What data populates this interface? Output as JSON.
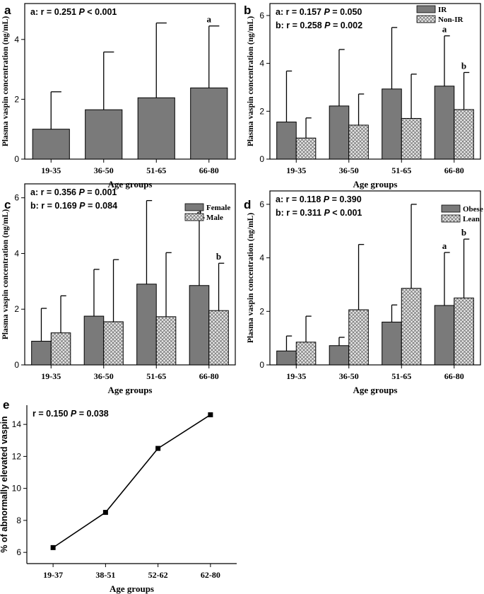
{
  "colors": {
    "bar_dark": "#7a7a7a",
    "hatch_bg": "#e8e8e8",
    "hatch_line": "#707070",
    "axis": "#000000"
  },
  "chart_data": [
    {
      "id": "a",
      "type": "bar",
      "panel_label": "a",
      "stats": [
        {
          "prefix": "a:",
          "r": "r = 0.251",
          "p_sym": "P",
          "p_val": "< 0.001"
        }
      ],
      "categories": [
        "19-35",
        "36-50",
        "51-65",
        "66-80"
      ],
      "series": [
        {
          "name": "",
          "style": "solid",
          "values": [
            1.0,
            1.65,
            2.05,
            2.38
          ],
          "errors": [
            2.25,
            3.58,
            4.55,
            4.45
          ],
          "annotations": [
            "",
            "",
            "",
            "a"
          ]
        }
      ],
      "ylim": [
        0,
        5.2
      ],
      "yticks": [
        0,
        2,
        4
      ],
      "xlabel": "Age groups",
      "ylabel": "Plasma vaspin concentration (ng/mL)",
      "legend": []
    },
    {
      "id": "b",
      "type": "bar",
      "panel_label": "b",
      "stats": [
        {
          "prefix": "a:",
          "r": "r = 0.157",
          "p_sym": "P",
          "p_val": "= 0.050"
        },
        {
          "prefix": "b:",
          "r": "r = 0.258",
          "p_sym": "P",
          "p_val": "= 0.002"
        }
      ],
      "categories": [
        "19-35",
        "36-50",
        "51-65",
        "66-80"
      ],
      "series": [
        {
          "name": "IR",
          "style": "solid",
          "values": [
            1.55,
            2.22,
            2.93,
            3.05
          ],
          "errors": [
            3.68,
            4.58,
            5.5,
            5.15
          ],
          "annotations": [
            "",
            "",
            "",
            "a"
          ]
        },
        {
          "name": "Non-IR",
          "style": "hatch",
          "values": [
            0.88,
            1.42,
            1.7,
            2.07
          ],
          "errors": [
            1.72,
            2.72,
            3.55,
            3.62
          ],
          "annotations": [
            "",
            "",
            "",
            "b"
          ]
        }
      ],
      "ylim": [
        0,
        6.5
      ],
      "yticks": [
        0,
        2,
        4,
        6
      ],
      "xlabel": "Age groups",
      "ylabel": "Plasma vaspin concentration (ng/mL)",
      "legend": [
        "IR",
        "Non-IR"
      ]
    },
    {
      "id": "c",
      "type": "bar",
      "panel_label": "c",
      "stats": [
        {
          "prefix": "a:",
          "r": "r = 0.356",
          "p_sym": "P",
          "p_val": "= 0.001"
        },
        {
          "prefix": "b:",
          "r": "r = 0.169",
          "p_sym": "P",
          "p_val": "= 0.084"
        }
      ],
      "categories": [
        "19-35",
        "36-50",
        "51-65",
        "66-80"
      ],
      "series": [
        {
          "name": "Female",
          "style": "solid",
          "values": [
            0.85,
            1.75,
            2.9,
            2.85
          ],
          "errors": [
            2.03,
            3.43,
            5.9,
            5.28
          ],
          "annotations": [
            "",
            "",
            "",
            "a"
          ]
        },
        {
          "name": "Male",
          "style": "hatch",
          "values": [
            1.15,
            1.55,
            1.73,
            1.95
          ],
          "errors": [
            2.48,
            3.78,
            4.03,
            3.65
          ],
          "annotations": [
            "",
            "",
            "",
            "b"
          ]
        }
      ],
      "ylim": [
        0,
        6.5
      ],
      "yticks": [
        0,
        2,
        4,
        6
      ],
      "xlabel": "Age groups",
      "ylabel": "Plasma vaspin concentration (ng/mL)",
      "legend": [
        "Female",
        "Male"
      ]
    },
    {
      "id": "d",
      "type": "bar",
      "panel_label": "d",
      "stats": [
        {
          "prefix": "a:",
          "r": "r = 0.118",
          "p_sym": "P",
          "p_val": "= 0.390"
        },
        {
          "prefix": "b:",
          "r": "r = 0.311",
          "p_sym": "P",
          "p_val": "< 0.001"
        }
      ],
      "categories": [
        "19-35",
        "36-50",
        "51-65",
        "66-80"
      ],
      "series": [
        {
          "name": "Obese",
          "style": "solid",
          "values": [
            0.52,
            0.72,
            1.6,
            2.22
          ],
          "errors": [
            1.08,
            1.03,
            2.24,
            4.2
          ],
          "annotations": [
            "",
            "",
            "",
            "a"
          ]
        },
        {
          "name": "Lean",
          "style": "hatch",
          "values": [
            0.85,
            2.06,
            2.86,
            2.5
          ],
          "errors": [
            1.82,
            4.5,
            6.0,
            4.7
          ],
          "annotations": [
            "",
            "",
            "",
            "b"
          ]
        }
      ],
      "ylim": [
        0,
        6.5
      ],
      "yticks": [
        0,
        2,
        4,
        6
      ],
      "xlabel": "Age groups",
      "ylabel": "Plasma vaspin concentration (ng/mL)",
      "legend": [
        "Obese",
        "Lean"
      ]
    },
    {
      "id": "e",
      "type": "line",
      "panel_label": "e",
      "stats": [
        {
          "prefix": "",
          "r": "r = 0.150",
          "p_sym": "P",
          "p_val": "= 0.038"
        }
      ],
      "categories": [
        "19-37",
        "38-51",
        "52-62",
        "62-80"
      ],
      "series": [
        {
          "name": "",
          "values": [
            6.3,
            8.5,
            12.5,
            14.6
          ]
        }
      ],
      "ylim": [
        5.3,
        15.2
      ],
      "yticks": [
        6,
        8,
        10,
        12,
        14
      ],
      "xlabel": "Age groups",
      "ylabel": "% of abnormally elevated vaspin",
      "legend": []
    }
  ]
}
